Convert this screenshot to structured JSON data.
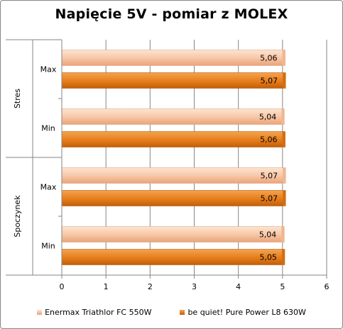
{
  "chart_data": {
    "type": "bar",
    "orientation": "horizontal",
    "title": "Napięcie 5V - pomiar z MOLEX",
    "xlabel": "",
    "ylabel": "",
    "xlim": [
      0,
      6
    ],
    "x_ticks": [
      "0",
      "1",
      "2",
      "3",
      "4",
      "5",
      "6"
    ],
    "groups": [
      {
        "label": "Stres",
        "categories": [
          "Max",
          "Min"
        ]
      },
      {
        "label": "Spoczynek",
        "categories": [
          "Max",
          "Min"
        ]
      }
    ],
    "series": [
      {
        "name": "Enermax Triathlor FC 550W",
        "color": "#F8C8A8",
        "values": [
          5.06,
          5.04,
          5.07,
          5.04
        ],
        "labels": [
          "5,06",
          "5,04",
          "5,07",
          "5,04"
        ]
      },
      {
        "name": "be quiet! Pure Power L8 630W",
        "color": "#E8801E",
        "values": [
          5.07,
          5.06,
          5.07,
          5.05
        ],
        "labels": [
          "5,07",
          "5,06",
          "5,07",
          "5,05"
        ]
      }
    ],
    "grid": true,
    "legend_position": "bottom"
  }
}
